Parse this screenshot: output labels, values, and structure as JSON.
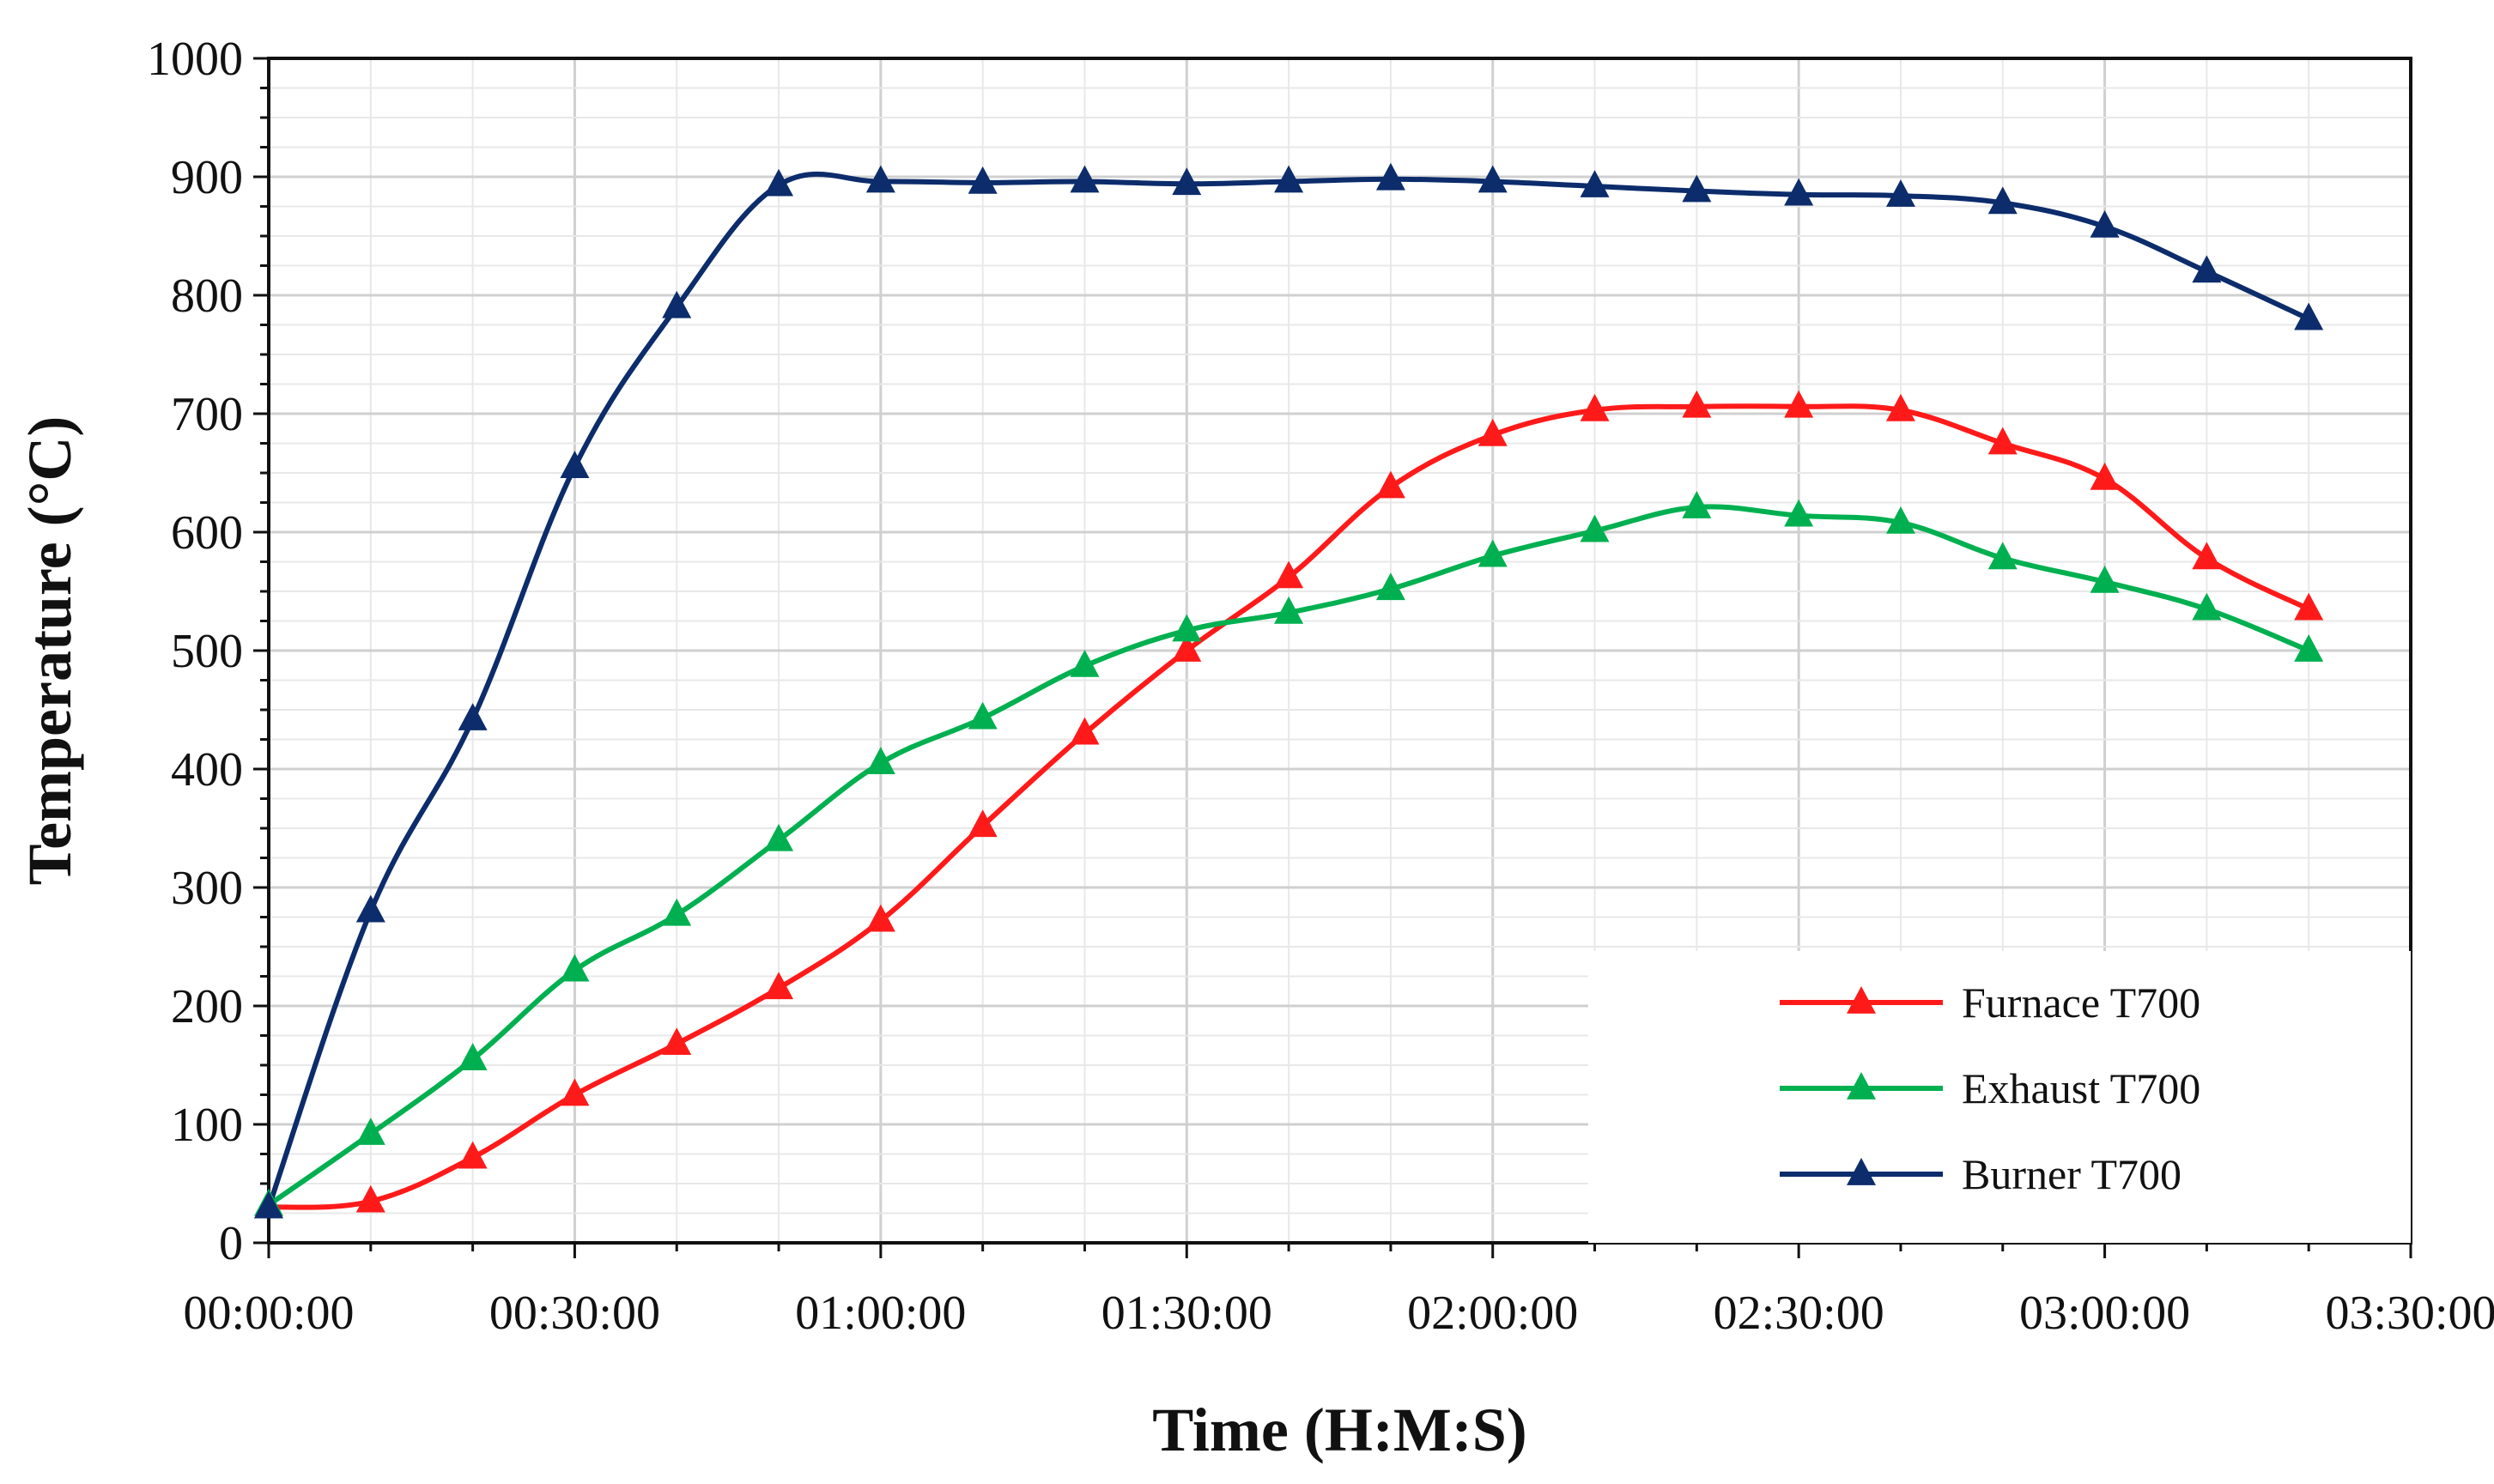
{
  "chart_data": {
    "type": "line",
    "title": "",
    "xlabel": "Time (H:M:S)",
    "ylabel": "Temperature (°C)",
    "x_unit": "minutes",
    "xlim": [
      0,
      210
    ],
    "ylim": [
      0,
      1000
    ],
    "x_ticks": [
      0,
      30,
      60,
      90,
      120,
      150,
      180,
      210
    ],
    "x_tick_labels": [
      "00:00:00",
      "00:30:00",
      "01:00:00",
      "01:30:00",
      "02:00:00",
      "02:30:00",
      "03:00:00",
      "03:30:00"
    ],
    "y_ticks": [
      0,
      100,
      200,
      300,
      400,
      500,
      600,
      700,
      800,
      900,
      1000
    ],
    "y_tick_labels": [
      "0",
      "100",
      "200",
      "300",
      "400",
      "500",
      "600",
      "700",
      "800",
      "900",
      "1000"
    ],
    "grid": true,
    "marker": "triangle",
    "legend_position": "bottom-right",
    "x": [
      0,
      10,
      20,
      30,
      40,
      50,
      60,
      70,
      80,
      90,
      100,
      110,
      120,
      130,
      140,
      150,
      160,
      170,
      180,
      190,
      200
    ],
    "series": [
      {
        "name": "Furnace T700",
        "color": "#ff1a1a",
        "values": [
          30,
          35,
          72,
          125,
          168,
          215,
          272,
          352,
          430,
          500,
          562,
          638,
          682,
          703,
          706,
          706,
          703,
          675,
          645,
          578,
          535
        ]
      },
      {
        "name": "Exhaust T700",
        "color": "#00b050",
        "values": [
          32,
          92,
          155,
          230,
          277,
          340,
          405,
          443,
          487,
          517,
          532,
          552,
          580,
          601,
          621,
          614,
          608,
          578,
          558,
          535,
          500
        ]
      },
      {
        "name": "Burner T700",
        "color": "#0c2c6b",
        "values": [
          30,
          280,
          442,
          655,
          790,
          893,
          896,
          895,
          896,
          894,
          896,
          898,
          896,
          892,
          888,
          885,
          884,
          878,
          858,
          820,
          780
        ]
      }
    ]
  }
}
